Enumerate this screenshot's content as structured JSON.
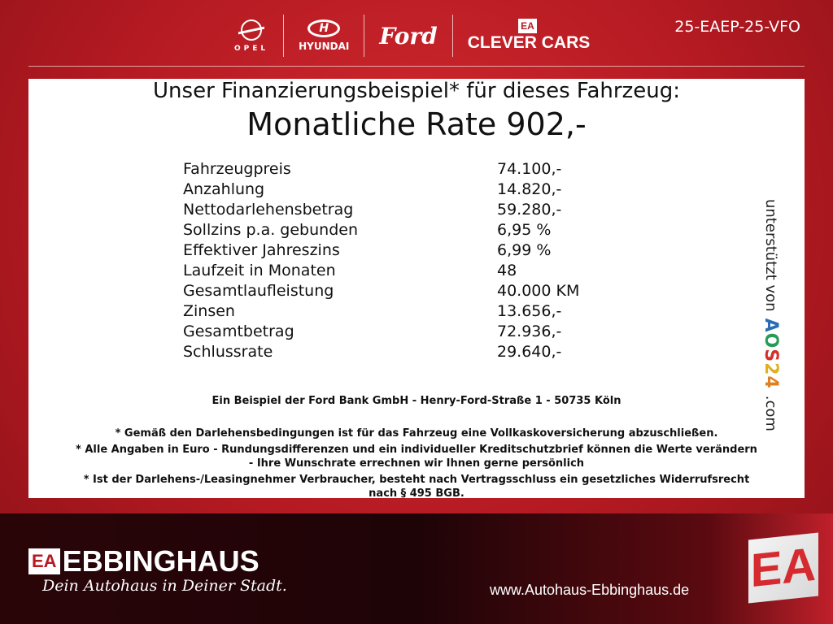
{
  "header": {
    "brands": {
      "opel": "OPEL",
      "hyundai_logo": "H",
      "hyundai": "HYUNDAI",
      "ford": "Ford",
      "clever_logo": "EA",
      "clever": "CLEVER CARS"
    },
    "code": "25-EAEP-25-VFO"
  },
  "offer": {
    "title": "Unser Finanzierungsbeispiel* für dieses Fahrzeug:",
    "rate": "Monatliche Rate 902,-",
    "rows": [
      {
        "label": "Fahrzeugpreis",
        "value": "74.100,-"
      },
      {
        "label": "Anzahlung",
        "value": "14.820,-"
      },
      {
        "label": "Nettodarlehensbetrag",
        "value": "59.280,-"
      },
      {
        "label": "Sollzins p.a. gebunden",
        "value": "6,95 %"
      },
      {
        "label": "Effektiver Jahreszins",
        "value": "6,99 %"
      },
      {
        "label": "Laufzeit in Monaten",
        "value": "48"
      },
      {
        "label": "Gesamtlaufleistung",
        "value": "40.000 KM"
      },
      {
        "label": "Zinsen",
        "value": "13.656,-"
      },
      {
        "label": "Gesamtbetrag",
        "value": "72.936,-"
      },
      {
        "label": "Schlussrate",
        "value": "29.640,-"
      }
    ],
    "bank": "Ein Beispiel der Ford Bank GmbH - Henry-Ford-Straße 1 - 50735 Köln",
    "notes": [
      "* Gemäß den Darlehensbedingungen ist für das Fahrzeug eine Vollkaskoversicherung abzuschließen.",
      "* Alle Angaben in Euro - Rundungsdifferenzen und ein individueller Kreditschutzbrief können die Werte verändern",
      "- Ihre Wunschrate errechnen wir Ihnen gerne persönlich",
      "* Ist der Darlehens-/Leasingnehmer Verbraucher, besteht nach Vertragsschluss ein gesetzliches Widerrufsrecht",
      "nach § 495 BGB."
    ],
    "supported": {
      "prefix": "unterstützt von",
      "brand": "AOS24",
      "suffix": ".com"
    }
  },
  "footer": {
    "logo_box": "EA",
    "name": "EBBINGHAUS",
    "slogan": "Dein Autohaus in Deiner Stadt.",
    "url": "www.Autohaus-Ebbinghaus.de",
    "big_logo": "EA"
  },
  "colors": {
    "brand_red": "#c0202a",
    "footer_dark": "#1e0407"
  }
}
